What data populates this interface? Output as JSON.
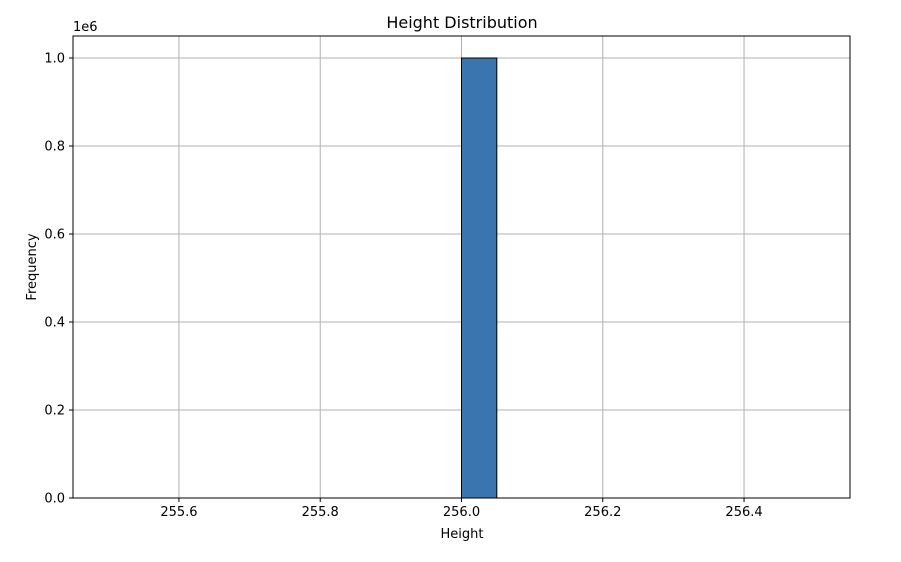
{
  "chart_data": {
    "type": "bar",
    "title": "Height Distribution",
    "xlabel": "Height",
    "ylabel": "Frequency",
    "y_offset_label": "1e6",
    "x_ticks": [
      "255.6",
      "255.8",
      "256.0",
      "256.2",
      "256.4"
    ],
    "y_ticks": [
      "0.0",
      "0.2",
      "0.4",
      "0.6",
      "0.8",
      "1.0"
    ],
    "xlim": [
      255.45,
      256.55
    ],
    "ylim": [
      0,
      1050000
    ],
    "bins": {
      "start": 255.5,
      "end": 256.5,
      "width": 0.05,
      "counts": [
        0,
        0,
        0,
        0,
        0,
        0,
        0,
        0,
        0,
        0,
        1000000,
        0,
        0,
        0,
        0,
        0,
        0,
        0,
        0,
        0
      ]
    },
    "grid": true,
    "colors": {
      "bar_fill": "#3a75af",
      "bar_edge": "#000000",
      "grid": "#b0b0b0"
    }
  }
}
